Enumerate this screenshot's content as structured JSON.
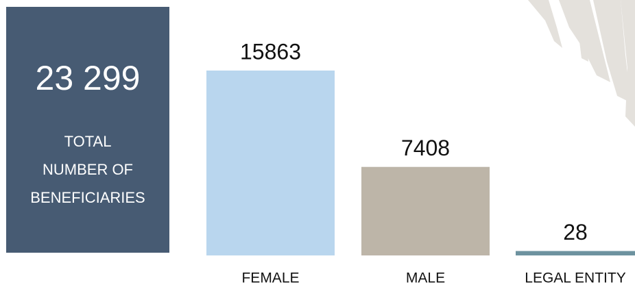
{
  "summary": {
    "value": "23 299",
    "label_lines": [
      "TOTAL",
      "NUMBER OF",
      "BENEFICIARIES"
    ]
  },
  "chart_data": {
    "type": "bar",
    "categories": [
      "FEMALE",
      "MALE",
      "LEGAL ENTITY"
    ],
    "values": [
      15863,
      7408,
      28
    ],
    "colors": [
      "#b9d6ee",
      "#bdb5a8",
      "#6d929f"
    ]
  }
}
